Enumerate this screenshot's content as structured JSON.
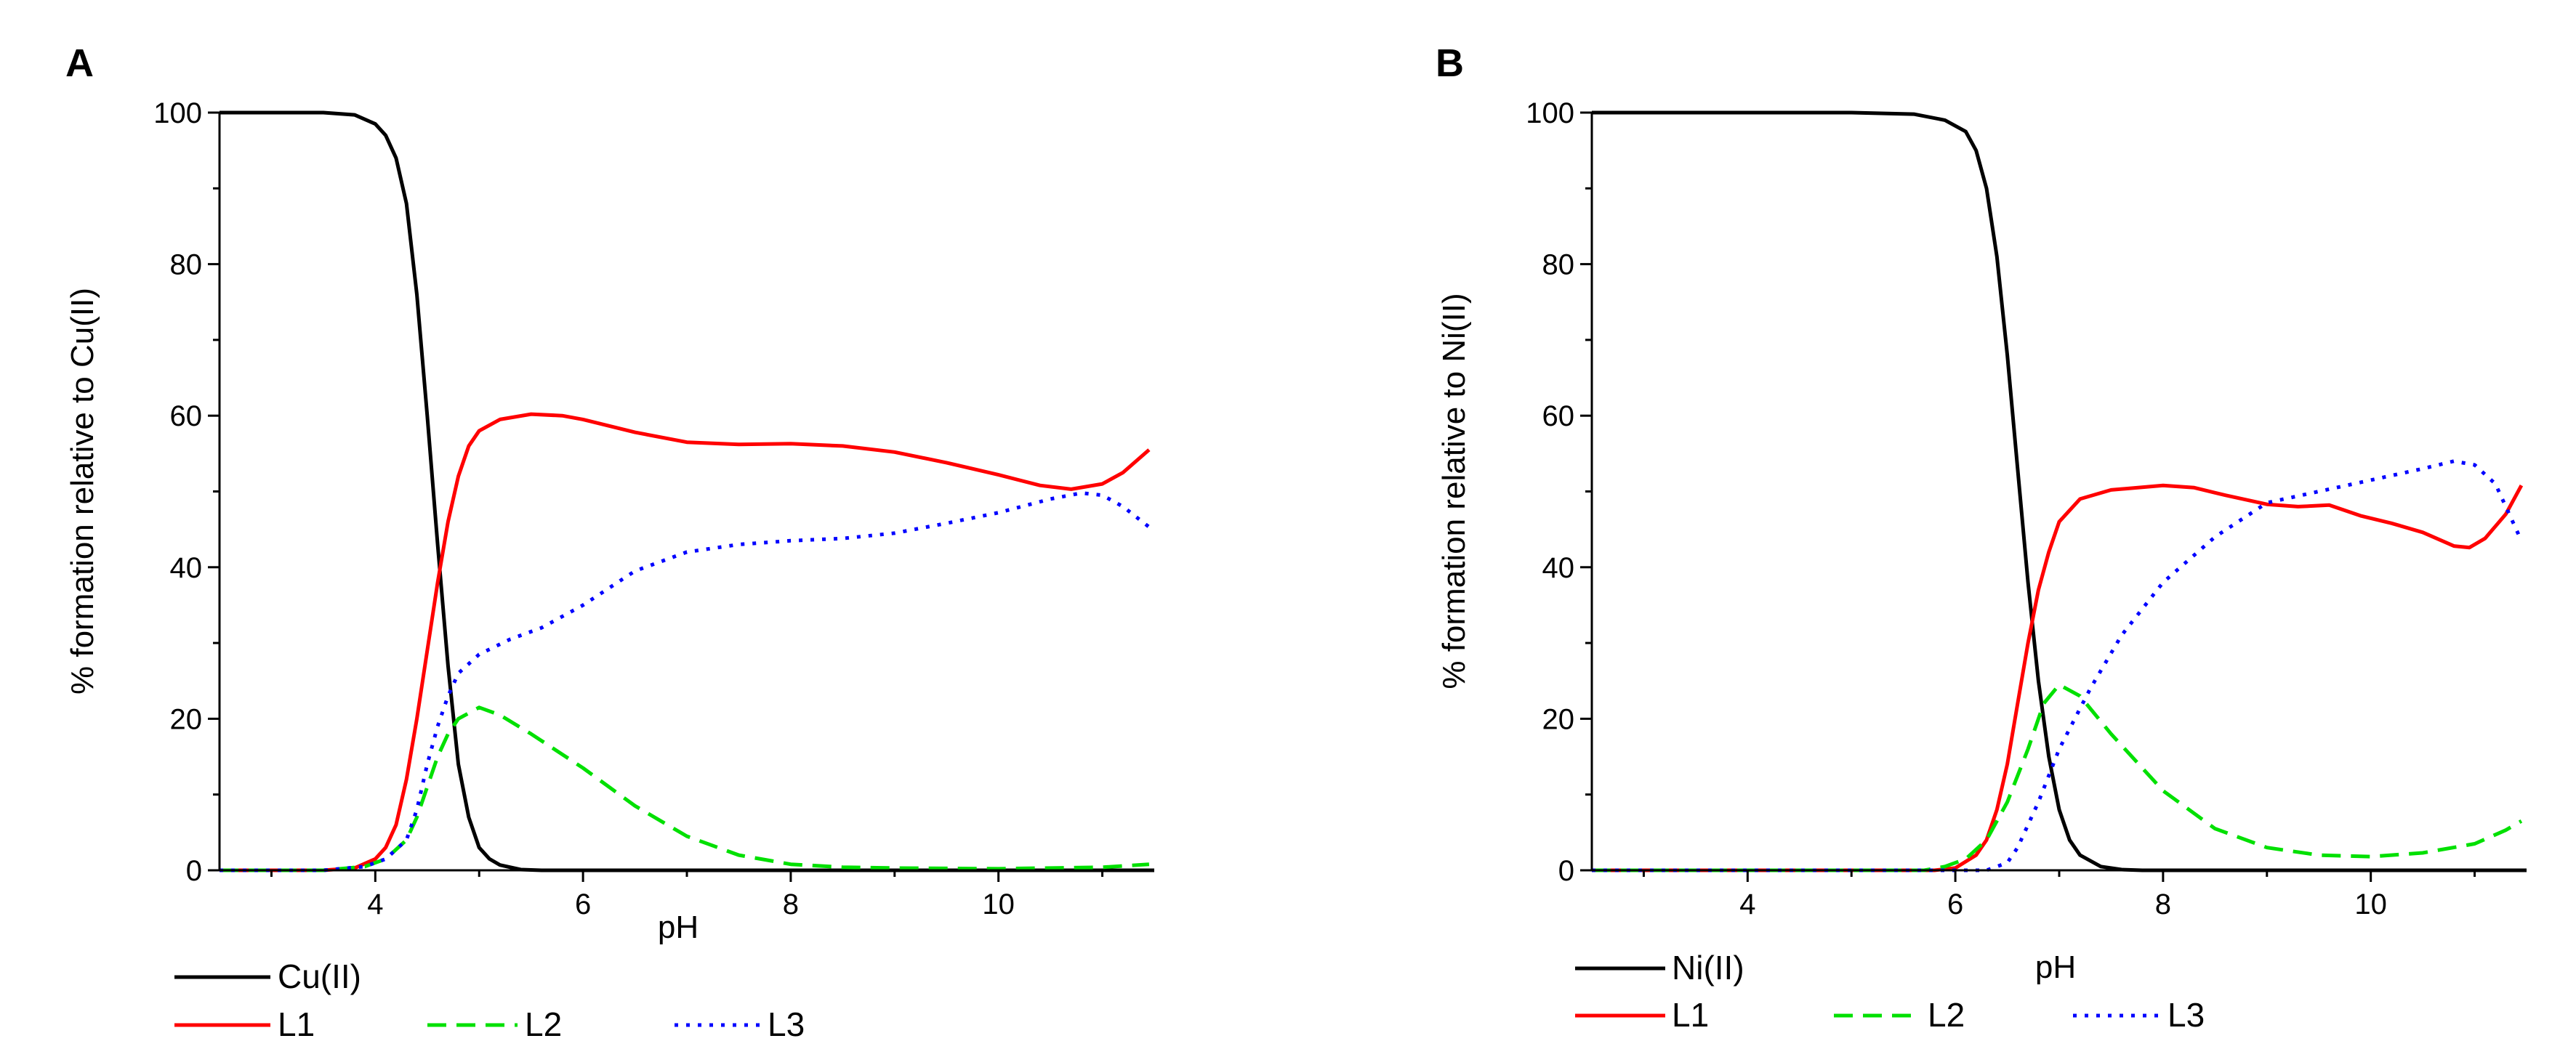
{
  "colors": {
    "background": "#ffffff",
    "axis": "#000000",
    "metal": "#000000",
    "L1": "#ff0000",
    "L2": "#00e000",
    "L3": "#0000ff"
  },
  "chart_data": [
    {
      "type": "line",
      "panel_label": "A",
      "title": "",
      "xlabel": "pH",
      "ylabel": "% formation relative to Cu(II)",
      "xlim": [
        2.5,
        11.5
      ],
      "ylim": [
        0,
        100
      ],
      "x_ticks": [
        4,
        6,
        8,
        10
      ],
      "y_ticks": [
        0,
        20,
        40,
        60,
        80,
        100
      ],
      "grid": false,
      "legend": "bottom",
      "series": [
        {
          "name": "Cu(II)",
          "color": "#000000",
          "style": "solid",
          "points": [
            [
              2.5,
              100
            ],
            [
              3.0,
              100
            ],
            [
              3.5,
              100
            ],
            [
              3.8,
              99.7
            ],
            [
              4.0,
              98.5
            ],
            [
              4.1,
              97
            ],
            [
              4.2,
              94
            ],
            [
              4.3,
              88
            ],
            [
              4.4,
              76
            ],
            [
              4.5,
              60
            ],
            [
              4.6,
              43
            ],
            [
              4.7,
              27
            ],
            [
              4.8,
              14
            ],
            [
              4.9,
              7
            ],
            [
              5.0,
              3
            ],
            [
              5.1,
              1.5
            ],
            [
              5.2,
              0.7
            ],
            [
              5.4,
              0.1
            ],
            [
              5.6,
              0
            ],
            [
              11.5,
              0
            ]
          ]
        },
        {
          "name": "L1",
          "color": "#ff0000",
          "style": "solid",
          "points": [
            [
              2.5,
              0
            ],
            [
              3.5,
              0
            ],
            [
              3.8,
              0.3
            ],
            [
              4.0,
              1.5
            ],
            [
              4.1,
              3
            ],
            [
              4.2,
              6
            ],
            [
              4.3,
              12
            ],
            [
              4.4,
              20
            ],
            [
              4.5,
              29
            ],
            [
              4.6,
              38
            ],
            [
              4.7,
              46
            ],
            [
              4.8,
              52
            ],
            [
              4.9,
              56
            ],
            [
              5.0,
              58
            ],
            [
              5.2,
              59.5
            ],
            [
              5.5,
              60.2
            ],
            [
              5.8,
              60
            ],
            [
              6.0,
              59.5
            ],
            [
              6.5,
              57.8
            ],
            [
              7.0,
              56.5
            ],
            [
              7.5,
              56.2
            ],
            [
              8.0,
              56.3
            ],
            [
              8.5,
              56
            ],
            [
              9.0,
              55.2
            ],
            [
              9.5,
              53.8
            ],
            [
              10.0,
              52.2
            ],
            [
              10.4,
              50.8
            ],
            [
              10.7,
              50.3
            ],
            [
              11.0,
              51
            ],
            [
              11.2,
              52.5
            ],
            [
              11.45,
              55.5
            ]
          ]
        },
        {
          "name": "L2",
          "color": "#00e000",
          "style": "dashed",
          "points": [
            [
              2.5,
              0
            ],
            [
              3.5,
              0
            ],
            [
              3.9,
              0.5
            ],
            [
              4.1,
              1.5
            ],
            [
              4.3,
              4
            ],
            [
              4.4,
              7
            ],
            [
              4.5,
              11
            ],
            [
              4.6,
              15
            ],
            [
              4.7,
              18
            ],
            [
              4.8,
              20
            ],
            [
              5.0,
              21.5
            ],
            [
              5.2,
              20.5
            ],
            [
              5.5,
              18
            ],
            [
              6.0,
              13.5
            ],
            [
              6.5,
              8.5
            ],
            [
              7.0,
              4.5
            ],
            [
              7.5,
              2
            ],
            [
              8.0,
              0.8
            ],
            [
              8.5,
              0.4
            ],
            [
              9.0,
              0.3
            ],
            [
              10.0,
              0.2
            ],
            [
              11.0,
              0.4
            ],
            [
              11.45,
              0.8
            ]
          ]
        },
        {
          "name": "L3",
          "color": "#0000ff",
          "style": "dotted",
          "points": [
            [
              2.5,
              0
            ],
            [
              3.5,
              0
            ],
            [
              3.9,
              0.5
            ],
            [
              4.1,
              1.5
            ],
            [
              4.3,
              4
            ],
            [
              4.4,
              8
            ],
            [
              4.5,
              14
            ],
            [
              4.6,
              19
            ],
            [
              4.7,
              23
            ],
            [
              4.8,
              26
            ],
            [
              5.0,
              28.5
            ],
            [
              5.3,
              30.5
            ],
            [
              5.6,
              32
            ],
            [
              6.0,
              35
            ],
            [
              6.5,
              39.5
            ],
            [
              7.0,
              42
            ],
            [
              7.5,
              43
            ],
            [
              8.0,
              43.5
            ],
            [
              8.5,
              43.8
            ],
            [
              9.0,
              44.5
            ],
            [
              9.5,
              45.8
            ],
            [
              10.0,
              47.2
            ],
            [
              10.5,
              49
            ],
            [
              10.8,
              49.8
            ],
            [
              11.0,
              49.5
            ],
            [
              11.2,
              48
            ],
            [
              11.45,
              45.3
            ]
          ]
        }
      ]
    },
    {
      "type": "line",
      "panel_label": "B",
      "title": "",
      "xlabel": "pH",
      "ylabel": "% formation relative to Ni(II)",
      "xlim": [
        2.5,
        11.5
      ],
      "ylim": [
        0,
        100
      ],
      "x_ticks": [
        4,
        6,
        8,
        10
      ],
      "y_ticks": [
        0,
        20,
        40,
        60,
        80,
        100
      ],
      "grid": false,
      "legend": "bottom",
      "series": [
        {
          "name": "Ni(II)",
          "color": "#000000",
          "style": "solid",
          "points": [
            [
              2.5,
              100
            ],
            [
              5.0,
              100
            ],
            [
              5.6,
              99.8
            ],
            [
              5.9,
              99
            ],
            [
              6.1,
              97.5
            ],
            [
              6.2,
              95
            ],
            [
              6.3,
              90
            ],
            [
              6.4,
              81
            ],
            [
              6.5,
              68
            ],
            [
              6.6,
              53
            ],
            [
              6.7,
              38
            ],
            [
              6.8,
              25
            ],
            [
              6.9,
              15
            ],
            [
              7.0,
              8
            ],
            [
              7.1,
              4
            ],
            [
              7.2,
              2
            ],
            [
              7.4,
              0.5
            ],
            [
              7.6,
              0.1
            ],
            [
              7.8,
              0
            ],
            [
              11.5,
              0
            ]
          ]
        },
        {
          "name": "L1",
          "color": "#ff0000",
          "style": "solid",
          "points": [
            [
              2.5,
              0
            ],
            [
              5.8,
              0
            ],
            [
              6.0,
              0.3
            ],
            [
              6.2,
              2
            ],
            [
              6.3,
              4
            ],
            [
              6.4,
              8
            ],
            [
              6.5,
              14
            ],
            [
              6.6,
              22
            ],
            [
              6.7,
              30
            ],
            [
              6.8,
              37
            ],
            [
              6.9,
              42
            ],
            [
              7.0,
              46
            ],
            [
              7.2,
              49
            ],
            [
              7.5,
              50.2
            ],
            [
              8.0,
              50.8
            ],
            [
              8.3,
              50.5
            ],
            [
              8.6,
              49.5
            ],
            [
              9.0,
              48.3
            ],
            [
              9.3,
              48
            ],
            [
              9.6,
              48.2
            ],
            [
              9.9,
              46.8
            ],
            [
              10.2,
              45.8
            ],
            [
              10.5,
              44.6
            ],
            [
              10.8,
              42.8
            ],
            [
              10.95,
              42.6
            ],
            [
              11.1,
              43.8
            ],
            [
              11.3,
              47
            ],
            [
              11.45,
              50.8
            ]
          ]
        },
        {
          "name": "L2",
          "color": "#00e000",
          "style": "dashed",
          "points": [
            [
              2.5,
              0
            ],
            [
              5.7,
              0
            ],
            [
              5.9,
              0.5
            ],
            [
              6.1,
              1.5
            ],
            [
              6.3,
              4
            ],
            [
              6.5,
              9
            ],
            [
              6.7,
              16
            ],
            [
              6.85,
              22
            ],
            [
              7.0,
              24.5
            ],
            [
              7.2,
              23
            ],
            [
              7.5,
              18
            ],
            [
              8.0,
              10.5
            ],
            [
              8.5,
              5.5
            ],
            [
              9.0,
              3
            ],
            [
              9.5,
              2
            ],
            [
              10.0,
              1.8
            ],
            [
              10.5,
              2.3
            ],
            [
              11.0,
              3.5
            ],
            [
              11.3,
              5.3
            ],
            [
              11.45,
              6.5
            ]
          ]
        },
        {
          "name": "L3",
          "color": "#0000ff",
          "style": "dotted",
          "points": [
            [
              2.5,
              0
            ],
            [
              6.3,
              0
            ],
            [
              6.5,
              1
            ],
            [
              6.6,
              3
            ],
            [
              6.8,
              9
            ],
            [
              7.0,
              16
            ],
            [
              7.3,
              24
            ],
            [
              7.6,
              31
            ],
            [
              8.0,
              38
            ],
            [
              8.5,
              44
            ],
            [
              9.0,
              48.5
            ],
            [
              9.5,
              50
            ],
            [
              10.0,
              51.5
            ],
            [
              10.5,
              53
            ],
            [
              10.8,
              54
            ],
            [
              11.0,
              53.5
            ],
            [
              11.2,
              51
            ],
            [
              11.45,
              43.5
            ]
          ]
        }
      ]
    }
  ]
}
